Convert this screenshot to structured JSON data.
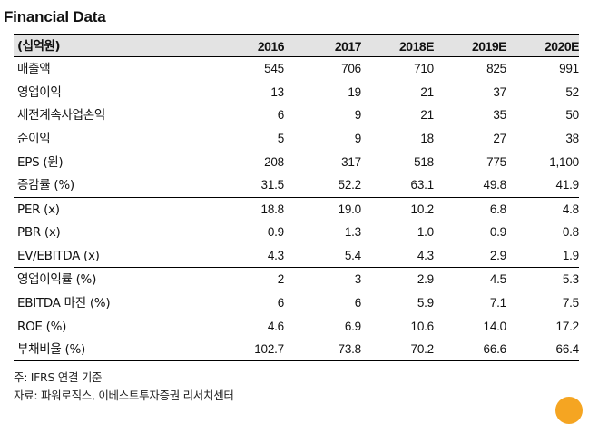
{
  "title": "Financial Data",
  "table": {
    "unit_label": "(십억원)",
    "years": [
      "2016",
      "2017",
      "2018E",
      "2019E",
      "2020E"
    ],
    "rows": [
      {
        "label": "매출액",
        "values": [
          "545",
          "706",
          "710",
          "825",
          "991"
        ]
      },
      {
        "label": "영업이익",
        "values": [
          "13",
          "19",
          "21",
          "37",
          "52"
        ]
      },
      {
        "label": "세전계속사업손익",
        "values": [
          "6",
          "9",
          "21",
          "35",
          "50"
        ]
      },
      {
        "label": "순이익",
        "values": [
          "5",
          "9",
          "18",
          "27",
          "38"
        ]
      },
      {
        "label": "EPS (원)",
        "values": [
          "208",
          "317",
          "518",
          "775",
          "1,100"
        ]
      },
      {
        "label": "증감률 (%)",
        "values": [
          "31.5",
          "52.2",
          "63.1",
          "49.8",
          "41.9"
        ]
      },
      {
        "label": "PER (x)",
        "values": [
          "18.8",
          "19.0",
          "10.2",
          "6.8",
          "4.8"
        ]
      },
      {
        "label": "PBR (x)",
        "values": [
          "0.9",
          "1.3",
          "1.0",
          "0.9",
          "0.8"
        ]
      },
      {
        "label": "EV/EBITDA (x)",
        "values": [
          "4.3",
          "5.4",
          "4.3",
          "2.9",
          "1.9"
        ]
      },
      {
        "label": "영업이익률 (%)",
        "values": [
          "2",
          "3",
          "2.9",
          "4.5",
          "5.3"
        ]
      },
      {
        "label": "EBITDA 마진 (%)",
        "values": [
          "6",
          "6",
          "5.9",
          "7.1",
          "7.5"
        ]
      },
      {
        "label": "ROE (%)",
        "values": [
          "4.6",
          "6.9",
          "10.6",
          "14.0",
          "17.2"
        ]
      },
      {
        "label": "부채비율 (%)",
        "values": [
          "102.7",
          "73.8",
          "70.2",
          "66.6",
          "66.4"
        ]
      }
    ]
  },
  "footnotes": {
    "note": "주: IFRS 연결 기준",
    "source": "자료: 파워로직스, 이베스트투자증권 리서치센터"
  },
  "colors": {
    "header_bg": "#e3e3e3",
    "badge": "#f5a522"
  }
}
